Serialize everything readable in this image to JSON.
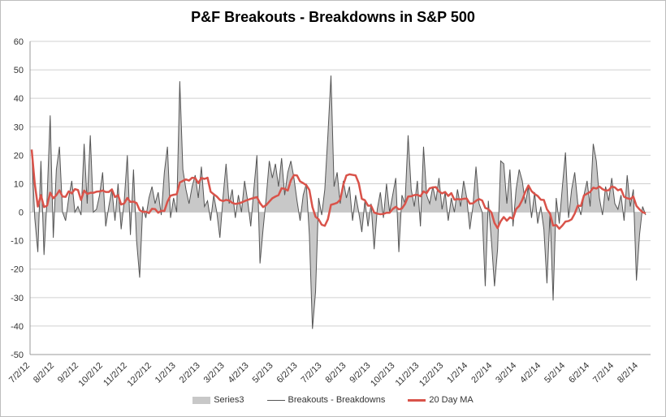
{
  "chart_data": {
    "type": "line",
    "title": "P&F Breakouts - Breakdowns in S&P 500",
    "xlabel": "",
    "ylabel": "",
    "ylim": [
      -50,
      60
    ],
    "yticks": [
      -50,
      -40,
      -30,
      -20,
      -10,
      0,
      10,
      20,
      30,
      40,
      50,
      60
    ],
    "grid": true,
    "legend_position": "bottom",
    "x_tick_labels": [
      "7/2/12",
      "8/2/12",
      "9/2/12",
      "10/2/12",
      "11/2/12",
      "12/2/12",
      "1/2/13",
      "2/2/13",
      "3/2/13",
      "4/2/13",
      "5/2/13",
      "6/2/13",
      "7/2/13",
      "8/2/13",
      "9/2/13",
      "10/2/13",
      "11/2/13",
      "12/2/13",
      "1/2/14",
      "2/2/14",
      "3/2/14",
      "4/2/14",
      "5/2/14",
      "6/2/14",
      "7/2/14",
      "8/2/14"
    ],
    "series": [
      {
        "name": "Series3",
        "kind": "area",
        "color": "#c8c8c8"
      },
      {
        "name": "Breakouts - Breakdowns",
        "kind": "line",
        "color": "#555555",
        "values": [
          22,
          -2,
          -14,
          18,
          -15,
          5,
          34,
          -9,
          15,
          23,
          0,
          -3,
          5,
          11,
          0,
          2,
          -1,
          24,
          3,
          27,
          0,
          1,
          6,
          14,
          -5,
          2,
          8,
          -3,
          10,
          -6,
          4,
          20,
          -8,
          15,
          -10,
          -23,
          2,
          -2,
          5,
          9,
          3,
          7,
          -1,
          14,
          23,
          -2,
          5,
          0,
          46,
          15,
          8,
          3,
          9,
          13,
          5,
          16,
          2,
          4,
          -3,
          6,
          0,
          -9,
          5,
          17,
          3,
          8,
          -2,
          6,
          0,
          11,
          4,
          -5,
          8,
          20,
          -18,
          -6,
          5,
          18,
          12,
          17,
          9,
          19,
          6,
          14,
          18,
          12,
          4,
          -3,
          6,
          10,
          -8,
          -41,
          -28,
          5,
          -1,
          8,
          27,
          48,
          9,
          14,
          3,
          11,
          5,
          9,
          -3,
          6,
          0,
          -7,
          4,
          -5,
          3,
          -13,
          1,
          7,
          -2,
          10,
          0,
          6,
          12,
          -14,
          6,
          3,
          27,
          8,
          2,
          11,
          -5,
          23,
          6,
          3,
          9,
          4,
          12,
          1,
          7,
          -3,
          5,
          0,
          8,
          2,
          11,
          5,
          -6,
          2,
          16,
          3,
          0,
          -26,
          4,
          -10,
          -26,
          -13,
          18,
          17,
          3,
          15,
          -5,
          8,
          15,
          11,
          3,
          9,
          -2,
          7,
          -4,
          2,
          -6,
          -25,
          0,
          -31,
          5,
          -4,
          9,
          21,
          -2,
          8,
          14,
          3,
          -1,
          6,
          11,
          2,
          24,
          18,
          5,
          -1,
          9,
          4,
          12,
          3,
          1,
          6,
          -3,
          13,
          2,
          8,
          -24,
          -8,
          2,
          -1
        ]
      },
      {
        "name": "20 Day MA",
        "kind": "moving-average",
        "color": "#d9534a"
      }
    ]
  }
}
